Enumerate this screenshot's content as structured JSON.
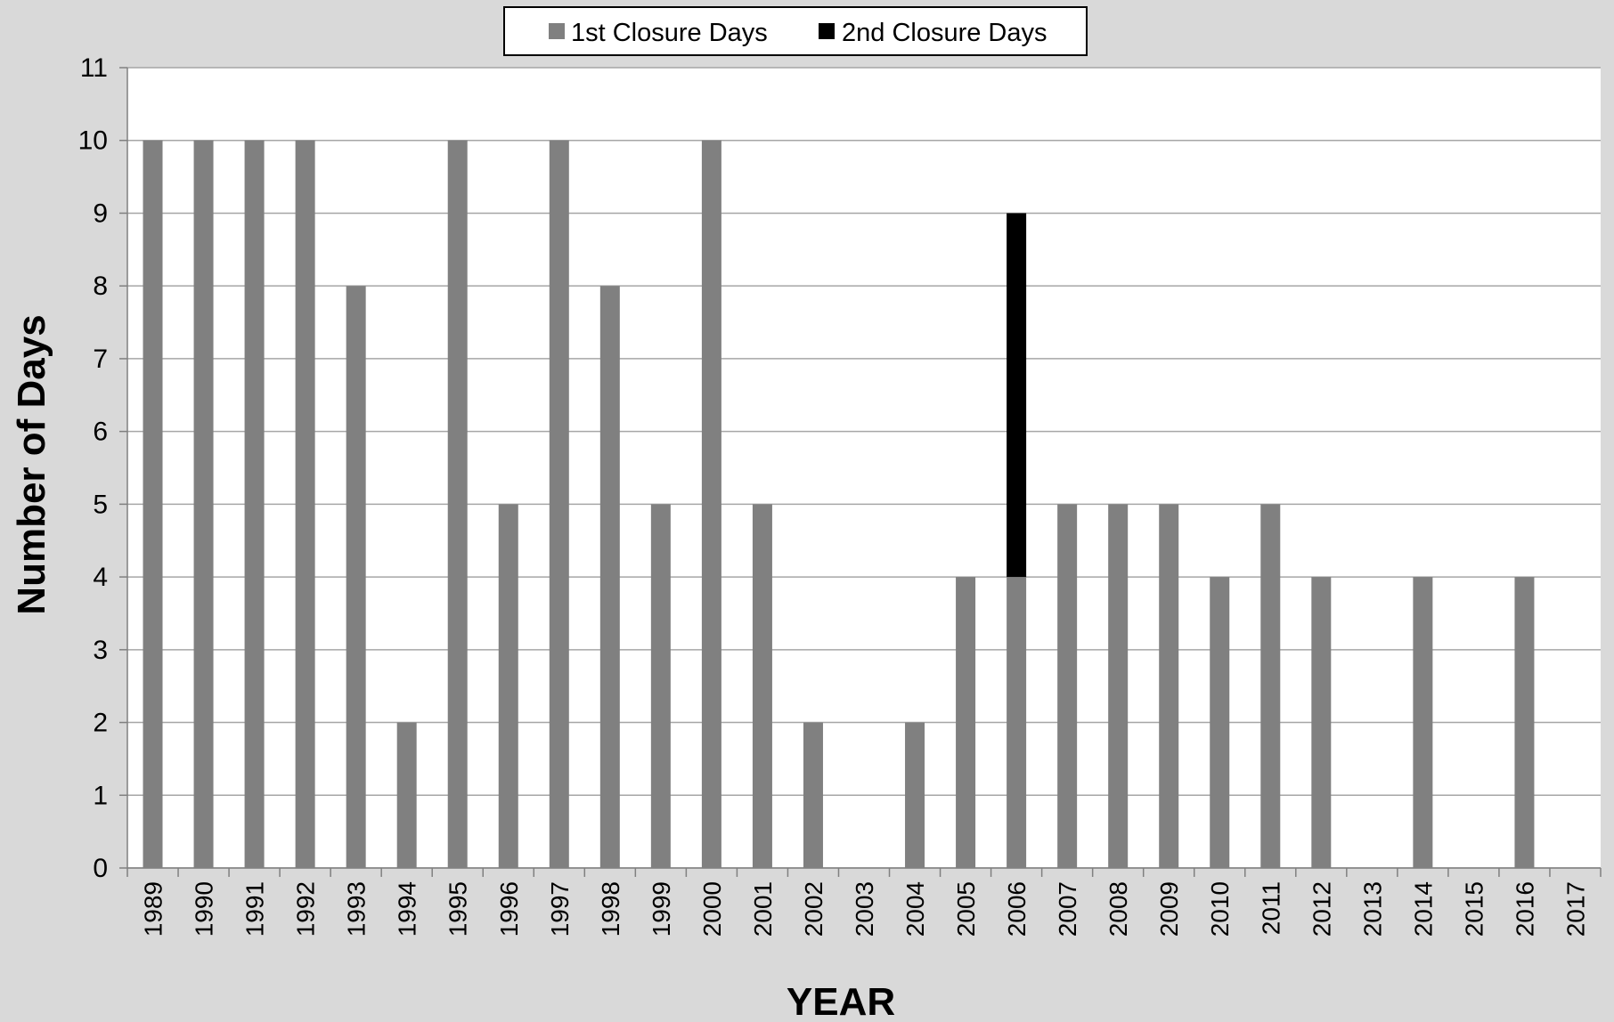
{
  "chart_data": {
    "type": "bar",
    "stacked": true,
    "title": "",
    "xlabel": "YEAR",
    "ylabel": "Number of Days",
    "ylim": [
      0,
      11
    ],
    "yticks": [
      0,
      1,
      2,
      3,
      4,
      5,
      6,
      7,
      8,
      9,
      10,
      11
    ],
    "grid": true,
    "legend_position": "top-center",
    "categories": [
      "1989",
      "1990",
      "1991",
      "1992",
      "1993",
      "1994",
      "1995",
      "1996",
      "1997",
      "1998",
      "1999",
      "2000",
      "2001",
      "2002",
      "2003",
      "2004",
      "2005",
      "2006",
      "2007",
      "2008",
      "2009",
      "2010",
      "2011",
      "2012",
      "2013",
      "2014",
      "2015",
      "2016",
      "2017"
    ],
    "series": [
      {
        "name": "1st Closure Days",
        "color": "#808080",
        "values": [
          10,
          10,
          10,
          10,
          8,
          2,
          10,
          5,
          10,
          8,
          5,
          10,
          5,
          2,
          0,
          2,
          4,
          4,
          5,
          5,
          5,
          4,
          5,
          4,
          0,
          4,
          0,
          4,
          0
        ]
      },
      {
        "name": "2nd Closure Days",
        "color": "#000000",
        "values": [
          0,
          0,
          0,
          0,
          0,
          0,
          0,
          0,
          0,
          0,
          0,
          0,
          0,
          0,
          0,
          0,
          0,
          5,
          0,
          0,
          0,
          0,
          0,
          0,
          0,
          0,
          0,
          0,
          0
        ]
      }
    ]
  }
}
